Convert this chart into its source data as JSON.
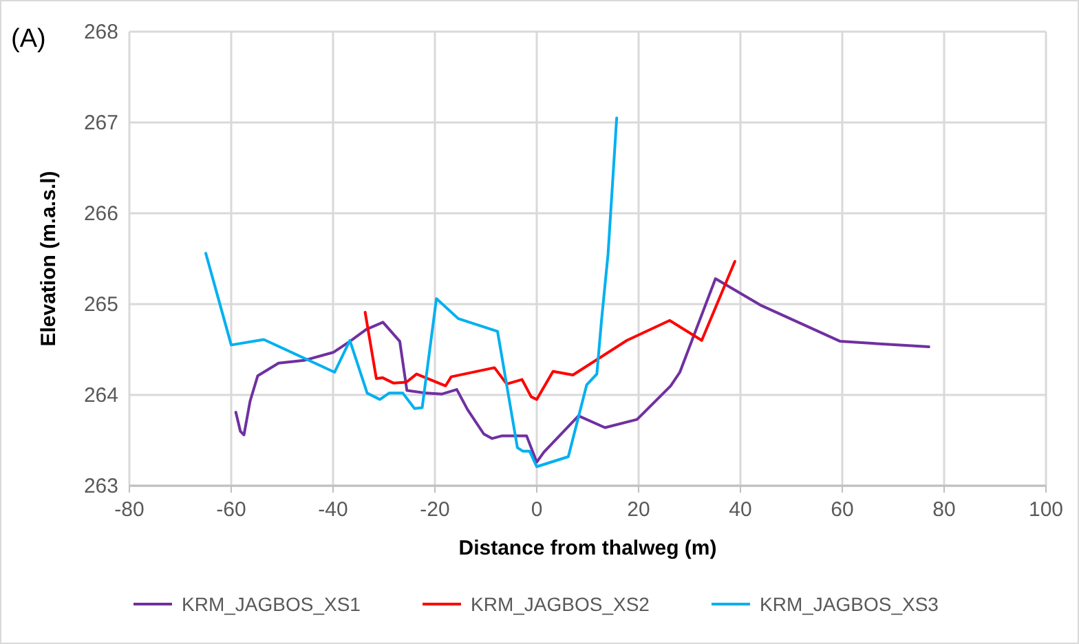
{
  "chart_data": {
    "type": "line",
    "title": "(A)",
    "xlabel": "Distance from thalweg (m)",
    "ylabel": "Elevation (m.a.s.l)",
    "xlim": [
      -80,
      100
    ],
    "xticks": [
      -80,
      -60,
      -40,
      -20,
      0,
      20,
      40,
      60,
      80,
      100
    ],
    "ylim": [
      263,
      268
    ],
    "yticks": [
      263,
      264,
      265,
      266,
      267,
      268
    ],
    "grid": true,
    "legend": "bottom",
    "marker": "none",
    "line_style": "solid",
    "series": [
      {
        "name": "KRM_JAGBOS_XS1",
        "color": "#7030a0",
        "x": [
          -59.1,
          -58.2,
          -57.5,
          -56.3,
          -54.8,
          -50.7,
          -45.7,
          -39.9,
          -36.7,
          -33.5,
          -30.2,
          -26.9,
          -25.5,
          -21.7,
          -18.6,
          -15.7,
          -13.6,
          -10.4,
          -8.8,
          -6.8,
          -2,
          0,
          1.4,
          8.2,
          13.4,
          19.7,
          26.3,
          28.1,
          35.1,
          43.9,
          59.6,
          77
        ],
        "values": [
          263.81,
          263.6,
          263.56,
          263.93,
          264.21,
          264.35,
          264.38,
          264.47,
          264.59,
          264.72,
          264.8,
          264.59,
          264.05,
          264.02,
          264.01,
          264.06,
          263.84,
          263.57,
          263.52,
          263.55,
          263.55,
          263.26,
          263.37,
          263.77,
          263.64,
          263.73,
          264.1,
          264.25,
          265.28,
          264.99,
          264.59,
          264.53
        ]
      },
      {
        "name": "KRM_JAGBOS_XS2",
        "color": "#ff0000",
        "x": [
          -33.7,
          -31.5,
          -30.3,
          -28.1,
          -25.6,
          -23.6,
          -17.9,
          -16.8,
          -8.3,
          -5.9,
          -2.9,
          -1.1,
          0,
          3.2,
          7.1,
          17.7,
          26.1,
          32.4,
          38.9
        ],
        "values": [
          264.91,
          264.18,
          264.19,
          264.13,
          264.14,
          264.23,
          264.1,
          264.2,
          264.3,
          264.12,
          264.17,
          263.98,
          263.95,
          264.26,
          264.22,
          264.6,
          264.82,
          264.6,
          265.47
        ]
      },
      {
        "name": "KRM_JAGBOS_XS3",
        "color": "#00b0f0",
        "x": [
          -65,
          -60,
          -53.6,
          -39.7,
          -36.7,
          -33.3,
          -30.8,
          -29,
          -26.3,
          -24,
          -22.5,
          -19.7,
          -15.4,
          -7.7,
          -3.8,
          -2.7,
          -1.4,
          0,
          6.2,
          9.8,
          11.8,
          12.7,
          14,
          15.7
        ],
        "values": [
          265.56,
          264.55,
          264.61,
          264.25,
          264.6,
          264.02,
          263.95,
          264.02,
          264.02,
          263.85,
          263.86,
          265.06,
          264.84,
          264.7,
          263.42,
          263.38,
          263.38,
          263.21,
          263.32,
          264.11,
          264.23,
          264.81,
          265.55,
          267.05
        ]
      }
    ]
  }
}
